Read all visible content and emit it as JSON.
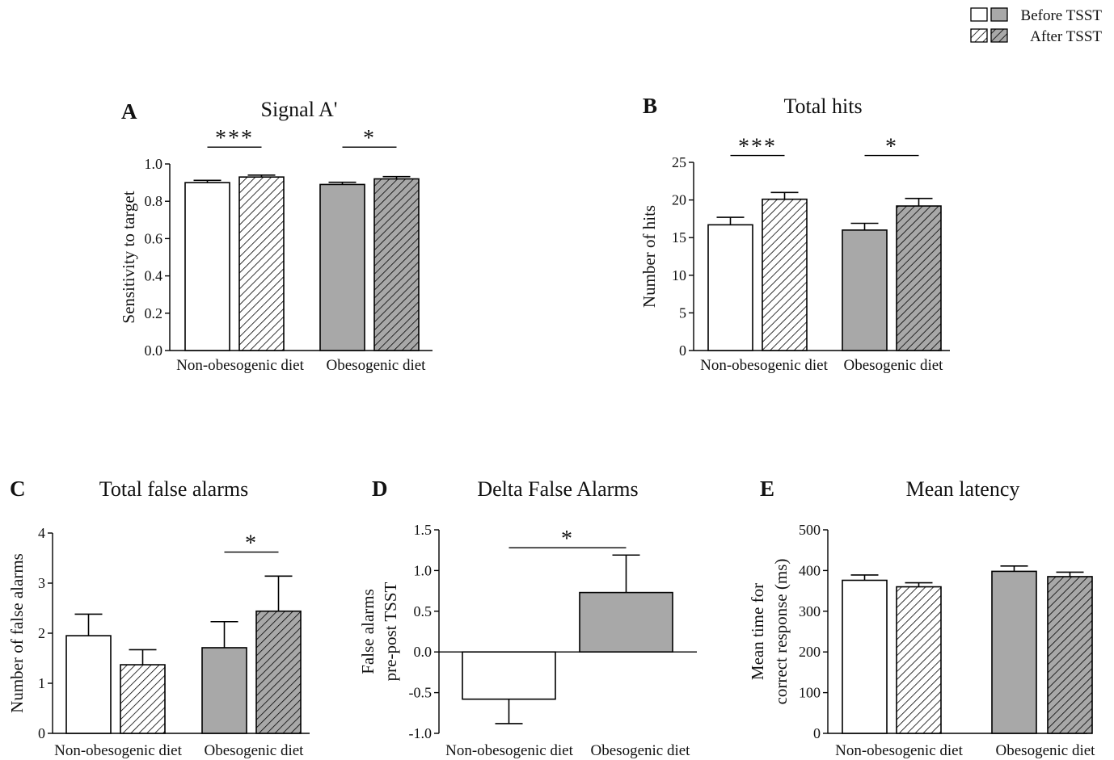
{
  "legend": {
    "before_label": "Before TSST",
    "after_label": "After TSST"
  },
  "colors": {
    "non_obesogenic_fill": "#ffffff",
    "obesogenic_fill": "#a8a8a8",
    "stroke": "#000000"
  },
  "chart_data": [
    {
      "id": "A",
      "type": "bar",
      "panel_letter": "A",
      "title": "Signal A'",
      "ylabel": "Sensitivity to target",
      "categories": [
        "Non-obesogenic diet",
        "Obesogenic diet"
      ],
      "yticks": [
        "0.0",
        "0.2",
        "0.4",
        "0.6",
        "0.8",
        "1.0"
      ],
      "ylim": [
        0,
        1.0
      ],
      "bars": [
        {
          "group": 0,
          "condition": "before",
          "value": 0.9,
          "error": 0.012
        },
        {
          "group": 0,
          "condition": "after",
          "value": 0.93,
          "error": 0.01
        },
        {
          "group": 1,
          "condition": "before",
          "value": 0.89,
          "error": 0.012
        },
        {
          "group": 1,
          "condition": "after",
          "value": 0.92,
          "error": 0.012
        }
      ],
      "significance": [
        {
          "group": 0,
          "label": "***",
          "y": 1.09
        },
        {
          "group": 1,
          "label": "*",
          "y": 1.09
        }
      ]
    },
    {
      "id": "B",
      "type": "bar",
      "panel_letter": "B",
      "title": "Total hits",
      "ylabel": "Number of hits",
      "categories": [
        "Non-obesogenic diet",
        "Obesogenic diet"
      ],
      "yticks": [
        "0",
        "5",
        "10",
        "15",
        "20",
        "25"
      ],
      "ylim": [
        0,
        25
      ],
      "bars": [
        {
          "group": 0,
          "condition": "before",
          "value": 16.7,
          "error": 1.0
        },
        {
          "group": 0,
          "condition": "after",
          "value": 20.1,
          "error": 0.9
        },
        {
          "group": 1,
          "condition": "before",
          "value": 16.0,
          "error": 0.9
        },
        {
          "group": 1,
          "condition": "after",
          "value": 19.2,
          "error": 1.0
        }
      ],
      "significance": [
        {
          "group": 0,
          "label": "***",
          "y": 25.9
        },
        {
          "group": 1,
          "label": "*",
          "y": 25.9
        }
      ]
    },
    {
      "id": "C",
      "type": "bar",
      "panel_letter": "C",
      "title": "Total false alarms",
      "ylabel": "Number of false alarms",
      "categories": [
        "Non-obesogenic diet",
        "Obesogenic diet"
      ],
      "yticks": [
        "0",
        "1",
        "2",
        "3",
        "4"
      ],
      "ylim": [
        0,
        4
      ],
      "bars": [
        {
          "group": 0,
          "condition": "before",
          "value": 1.95,
          "error": 0.43
        },
        {
          "group": 0,
          "condition": "after",
          "value": 1.37,
          "error": 0.3
        },
        {
          "group": 1,
          "condition": "before",
          "value": 1.71,
          "error": 0.52
        },
        {
          "group": 1,
          "condition": "after",
          "value": 2.44,
          "error": 0.7
        }
      ],
      "significance": [
        {
          "group": 1,
          "label": "*",
          "y": 3.62
        }
      ]
    },
    {
      "id": "D",
      "type": "bar",
      "panel_letter": "D",
      "title": "Delta False Alarms",
      "ylabel": [
        "False alarms",
        "pre-post TSST"
      ],
      "categories": [
        "Non-obesogenic diet",
        "Obesogenic diet"
      ],
      "yticks": [
        "-1.0",
        "-0.5",
        "0.0",
        "0.5",
        "1.0",
        "1.5"
      ],
      "ylim": [
        -1.0,
        1.5
      ],
      "bars": [
        {
          "group": 0,
          "condition": "delta",
          "value": -0.58,
          "error": 0.3
        },
        {
          "group": 1,
          "condition": "delta",
          "value": 0.73,
          "error": 0.46
        }
      ],
      "significance": [
        {
          "span": [
            0,
            1
          ],
          "label": "*",
          "y": 1.28
        }
      ]
    },
    {
      "id": "E",
      "type": "bar",
      "panel_letter": "E",
      "title": "Mean latency",
      "ylabel": [
        "Mean time for",
        "correct response (ms)"
      ],
      "categories": [
        "Non-obesogenic diet",
        "Obesogenic diet"
      ],
      "yticks": [
        "0",
        "100",
        "200",
        "300",
        "400",
        "500"
      ],
      "ylim": [
        0,
        500
      ],
      "bars": [
        {
          "group": 0,
          "condition": "before",
          "value": 376,
          "error": 13
        },
        {
          "group": 0,
          "condition": "after",
          "value": 360,
          "error": 10
        },
        {
          "group": 1,
          "condition": "before",
          "value": 398,
          "error": 13
        },
        {
          "group": 1,
          "condition": "after",
          "value": 385,
          "error": 11
        }
      ],
      "significance": []
    }
  ]
}
